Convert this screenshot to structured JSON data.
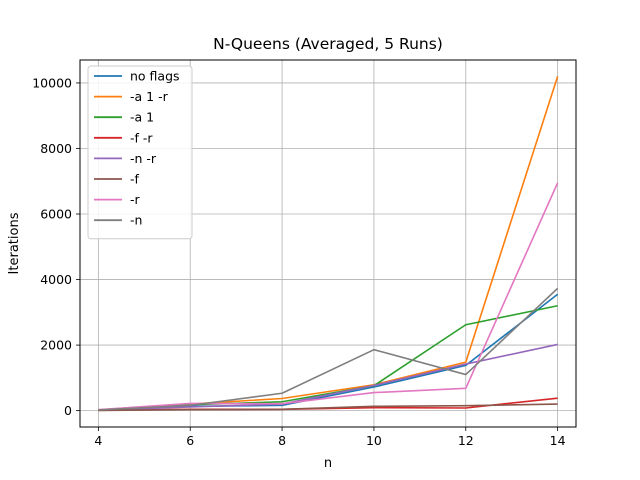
{
  "chart_data": {
    "type": "line",
    "title": "N-Queens (Averaged, 5 Runs)",
    "xlabel": "n",
    "ylabel": "Iterations",
    "x": [
      4,
      6,
      8,
      10,
      12,
      14
    ],
    "xlim": [
      3.6,
      14.4
    ],
    "ylim": [
      -500,
      10700
    ],
    "xticks": [
      4,
      6,
      8,
      10,
      12,
      14
    ],
    "yticks": [
      0,
      2000,
      4000,
      6000,
      8000,
      10000
    ],
    "grid": true,
    "legend_position": "top-left",
    "series": [
      {
        "name": "no flags",
        "color": "#1f77b4",
        "values": [
          20,
          130,
          160,
          720,
          1380,
          3550
        ]
      },
      {
        "name": "-a 1 -r",
        "color": "#ff7f0e",
        "values": [
          25,
          200,
          370,
          790,
          1480,
          10200
        ]
      },
      {
        "name": "-a 1",
        "color": "#2ca02c",
        "values": [
          20,
          180,
          270,
          760,
          2620,
          3200
        ]
      },
      {
        "name": "-f -r",
        "color": "#d62728",
        "values": [
          10,
          40,
          40,
          90,
          80,
          380
        ]
      },
      {
        "name": "-n -r",
        "color": "#9467bd",
        "values": [
          15,
          110,
          200,
          770,
          1420,
          2020
        ]
      },
      {
        "name": "-f",
        "color": "#8c564b",
        "values": [
          5,
          30,
          40,
          130,
          150,
          200
        ]
      },
      {
        "name": "-r",
        "color": "#e377c2",
        "values": [
          30,
          220,
          210,
          550,
          680,
          6950
        ]
      },
      {
        "name": "-n",
        "color": "#7f7f7f",
        "values": [
          20,
          160,
          530,
          1860,
          1100,
          3730
        ]
      }
    ]
  }
}
